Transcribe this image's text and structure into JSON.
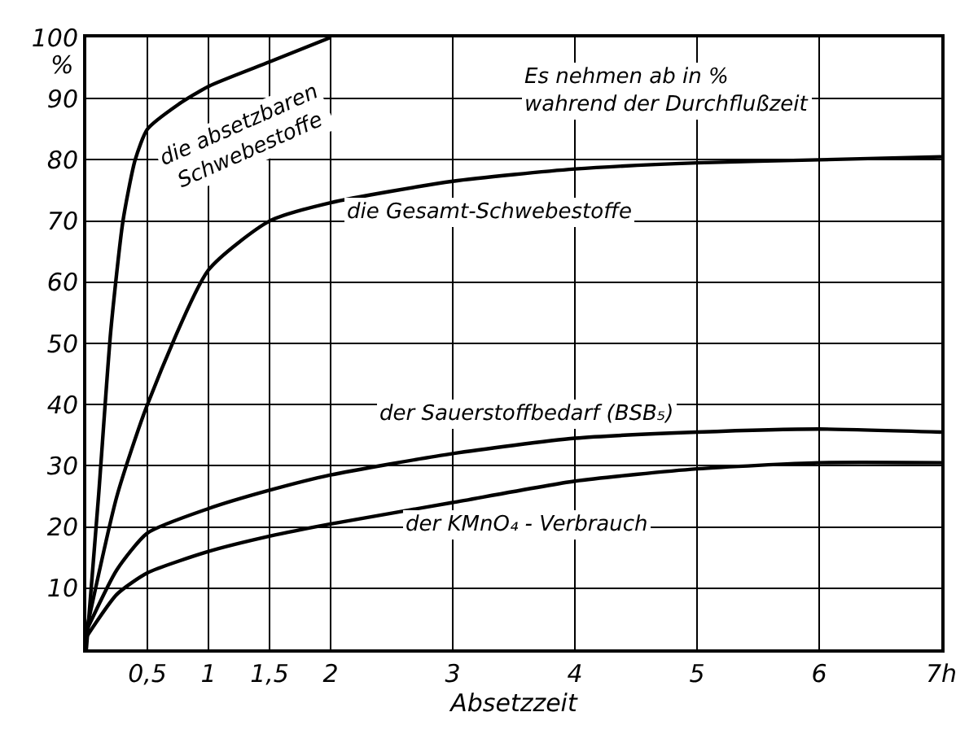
{
  "chart_data": {
    "type": "line",
    "xlabel": "Absetzzeit",
    "ylabel": "%",
    "annotations": [
      "Es nehmen ab in %\nwahrend der Durchflußzeit"
    ],
    "xlim": [
      0,
      7
    ],
    "ylim": [
      0,
      100
    ],
    "xticks": [
      {
        "value": 0.5,
        "label": "0,5"
      },
      1,
      {
        "value": 1.5,
        "label": "1,5"
      },
      2,
      3,
      4,
      5,
      6,
      {
        "value": 7,
        "label": "7h"
      }
    ],
    "yticks": [
      10,
      20,
      30,
      40,
      50,
      60,
      70,
      80,
      90,
      100
    ],
    "grid": true,
    "legend": false,
    "marker": "none",
    "line_style": "solid",
    "series": [
      {
        "name": "die absetzbaren\nSchwebestoffe",
        "color": "#000000",
        "x": [
          0,
          0.1,
          0.2,
          0.3,
          0.4,
          0.5,
          0.75,
          1,
          1.5,
          2
        ],
        "values": [
          0,
          25,
          52,
          70,
          80,
          85,
          89,
          92,
          96,
          100
        ]
      },
      {
        "name": "die Gesamt-Schwebestoffe",
        "color": "#000000",
        "x": [
          0,
          0.25,
          0.5,
          1,
          1.5,
          2,
          3,
          4,
          5,
          6,
          7
        ],
        "values": [
          3,
          25,
          40,
          62,
          70,
          73,
          76.5,
          78.5,
          79.5,
          80,
          80.5
        ]
      },
      {
        "name": "der Sauerstoffbedarf (BSB₅)",
        "color": "#000000",
        "x": [
          0,
          0.25,
          0.5,
          1,
          1.5,
          2,
          3,
          4,
          5,
          6,
          7
        ],
        "values": [
          3,
          13,
          19,
          23,
          26,
          28.5,
          32,
          34.5,
          35.5,
          36,
          35.5
        ]
      },
      {
        "name": "der KMnO₄ - Verbrauch",
        "color": "#000000",
        "x": [
          0,
          0.25,
          0.5,
          1,
          1.5,
          2,
          3,
          4,
          5,
          6,
          7
        ],
        "values": [
          2,
          9,
          12.5,
          16,
          18.5,
          20.5,
          24,
          27.5,
          29.5,
          30.5,
          30.5
        ]
      }
    ]
  }
}
